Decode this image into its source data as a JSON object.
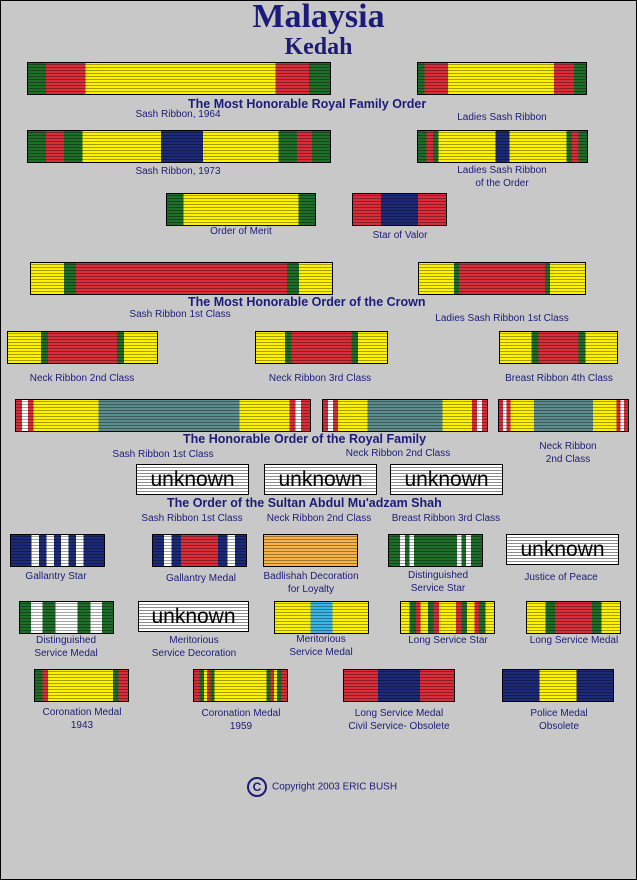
{
  "title": "Malaysia",
  "subtitle": "Kedah",
  "orders": {
    "royal_family_order": "The Most Honorable Royal Family Order",
    "crown": "The Most Honorable Order of the Crown",
    "royal_family": "The Honorable Order of the Royal Family",
    "sultan": "The Order of the Sultan Abdul Mu'adzam Shah"
  },
  "captions": {
    "sash_1964": "Sash Ribbon, 1964",
    "ladies_sash": "Ladies Sash Ribbon",
    "sash_1973": "Sash Ribbon, 1973",
    "ladies_sash_order": "Ladies Sash Ribbon\nof the Order",
    "order_of_merit": "Order of Merit",
    "star_of_valor": "Star of Valor",
    "crown_sash_1st": "Sash Ribbon 1st Class",
    "crown_ladies_1st": "Ladies Sash Ribbon 1st Class",
    "crown_neck_2nd": "Neck Ribbon 2nd Class",
    "crown_neck_3rd": "Neck Ribbon 3rd Class",
    "crown_breast_4th": "Breast Ribbon 4th Class",
    "royal_sash_1st": "Sash Ribbon 1st Class",
    "royal_neck_2nd": "Neck Ribbon 2nd Class",
    "royal_neck_2nd_b": "Neck Ribbon\n2nd Class",
    "sultan_sash_1st": "Sash Ribbon 1st Class",
    "sultan_neck_2nd": "Neck Ribbon 2nd Class",
    "sultan_breast_3rd": "Breast Ribbon 3rd Class",
    "gallantry_star": "Gallantry Star",
    "gallantry_medal": "Gallantry Medal",
    "badlishah": "Badlishah Decoration\nfor Loyalty",
    "distinguished_star": "Distinguished\nService Star",
    "justice_peace": "Justice of Peace",
    "distinguished_medal": "Distinguished\nService Medal",
    "meritorious_decoration": "Meritorious\nService  Decoration",
    "meritorious_medal": "Meritorious\nService Medal",
    "long_service_star": "Long Service Star",
    "long_service_medal": "Long Service Medal",
    "coronation_1943": "Coronation Medal\n1943",
    "coronation_1959": "Coronation Medal\n1959",
    "long_service_civil": "Long Service Medal\nCivil Service- Obsolete",
    "police_medal": "Police  Medal\nObsolete"
  },
  "unknown_label": "unknown",
  "copyright_symbol": "C",
  "copyright": "Copyright 2003 ERIC BUSH",
  "colors": {
    "background": "#c8c8c8",
    "text": "#1c1c78",
    "red": "#d92e3a",
    "green": "#1e6e2a",
    "yellow": "#fff200",
    "navy": "#1c2a78",
    "teal": "#5c8c8c"
  }
}
